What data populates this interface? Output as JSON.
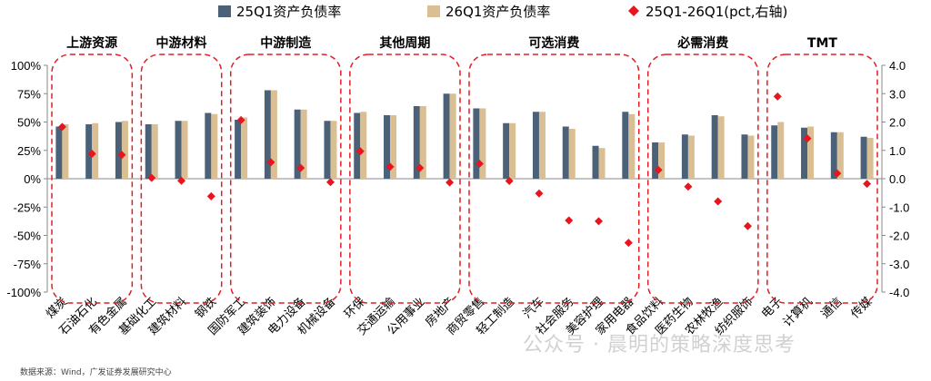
{
  "chart_data": {
    "type": "bar",
    "legend": [
      {
        "name": "25Q1资产负债率",
        "color": "#4a6178",
        "kind": "bar"
      },
      {
        "name": "26Q1资产负债率",
        "color": "#d9bf93",
        "kind": "bar"
      },
      {
        "name": "25Q1-26Q1(pct,右轴)",
        "color": "#e8141e",
        "kind": "marker"
      }
    ],
    "legend_position": "top",
    "y_left": {
      "min": -100,
      "max": 100,
      "ticks": [
        "100%",
        "75%",
        "50%",
        "25%",
        "0%",
        "-25%",
        "-50%",
        "-75%",
        "-100%"
      ]
    },
    "y_right": {
      "min": -4,
      "max": 4,
      "ticks": [
        "4.0",
        "3.0",
        "2.0",
        "1.0",
        "0.0",
        "-1.0",
        "-2.0",
        "-3.0",
        "-4.0"
      ]
    },
    "groups": [
      {
        "name": "上游资源",
        "categories": [
          "煤炭",
          "石油石化",
          "有色金属"
        ]
      },
      {
        "name": "中游材料",
        "categories": [
          "基础化工",
          "建筑材料",
          "钢铁"
        ]
      },
      {
        "name": "中游制造",
        "categories": [
          "国防军工",
          "建筑装饰",
          "电力设备",
          "机械设备"
        ]
      },
      {
        "name": "其他周期",
        "categories": [
          "环保",
          "交通运输",
          "公用事业",
          "房地产"
        ]
      },
      {
        "name": "可选消费",
        "categories": [
          "商贸零售",
          "轻工制造",
          "汽车",
          "社会服务",
          "美容护理",
          "家用电器"
        ]
      },
      {
        "name": "必需消费",
        "categories": [
          "食品饮料",
          "医药生物",
          "农林牧渔",
          "纺织服饰"
        ]
      },
      {
        "name": "TMT",
        "categories": [
          "电子",
          "计算机",
          "通信",
          "传媒"
        ]
      }
    ],
    "series": [
      {
        "name": "25Q1资产负债率",
        "axis": "left",
        "values": [
          46,
          48,
          50,
          48,
          51,
          58,
          52,
          78,
          61,
          51,
          58,
          56,
          64,
          75,
          62,
          49,
          59,
          46,
          29,
          59,
          32,
          39,
          56,
          39,
          47,
          45,
          41,
          37
        ]
      },
      {
        "name": "26Q1资产负债率",
        "axis": "left",
        "values": [
          48,
          49,
          51,
          48,
          51,
          57,
          54,
          78,
          61,
          51,
          59,
          56,
          64,
          75,
          62,
          49,
          59,
          44,
          27,
          57,
          32,
          38,
          55,
          38,
          50,
          46,
          41,
          36
        ]
      },
      {
        "name": "25Q1-26Q1(pct,右轴)",
        "axis": "right",
        "values": [
          1.83,
          0.88,
          0.84,
          0.03,
          -0.07,
          -0.62,
          2.07,
          0.58,
          0.38,
          -0.12,
          0.97,
          0.42,
          0.38,
          -0.13,
          0.53,
          -0.08,
          -0.52,
          -1.47,
          -1.5,
          -2.26,
          0.31,
          -0.28,
          -0.8,
          -1.67,
          2.9,
          1.42,
          0.19,
          -0.18
        ]
      }
    ]
  },
  "source_text": "数据来源：Wind，广发证券发展研究中心",
  "watermark_text": "公众号 · 晨明的策略深度思考"
}
